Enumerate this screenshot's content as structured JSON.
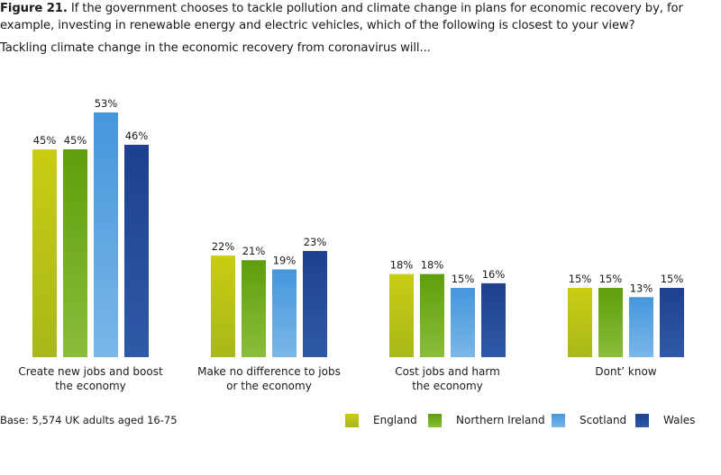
{
  "figure_label": "Figure 21.",
  "title_text": " If the government chooses to tackle pollution and climate change in plans for economic recovery by, for example, investing in renewable energy and electric vehicles, which of the following is closest to your view?",
  "subtitle": "Tackling climate change in the economic recovery from coronavirus will...",
  "base_note": "Base: 5,574 UK adults aged 16-75",
  "colors": {
    "England": [
      "#c9cc12",
      "#a8b81a"
    ],
    "Northern Ireland": [
      "#5e9e0c",
      "#8bbd3a"
    ],
    "Scotland": [
      "#4596dc",
      "#7ab6e8"
    ],
    "Wales": [
      "#1f3f8f",
      "#2e5aa8"
    ]
  },
  "chart_data": {
    "type": "bar",
    "categories": [
      [
        "Create new jobs and boost",
        "the economy"
      ],
      [
        "Make no difference to jobs",
        "or the economy"
      ],
      [
        "Cost jobs and harm",
        "the economy"
      ],
      [
        "Dont’ know"
      ]
    ],
    "series": [
      {
        "name": "England",
        "values": [
          45,
          22,
          18,
          15
        ]
      },
      {
        "name": "Northern Ireland",
        "values": [
          45,
          21,
          18,
          15
        ]
      },
      {
        "name": "Scotland",
        "values": [
          53,
          19,
          15,
          13
        ]
      },
      {
        "name": "Wales",
        "values": [
          46,
          23,
          16,
          15
        ]
      }
    ],
    "value_suffix": "%",
    "ylim": [
      0,
      53
    ],
    "grid": false,
    "legend_position": "bottom-right"
  }
}
